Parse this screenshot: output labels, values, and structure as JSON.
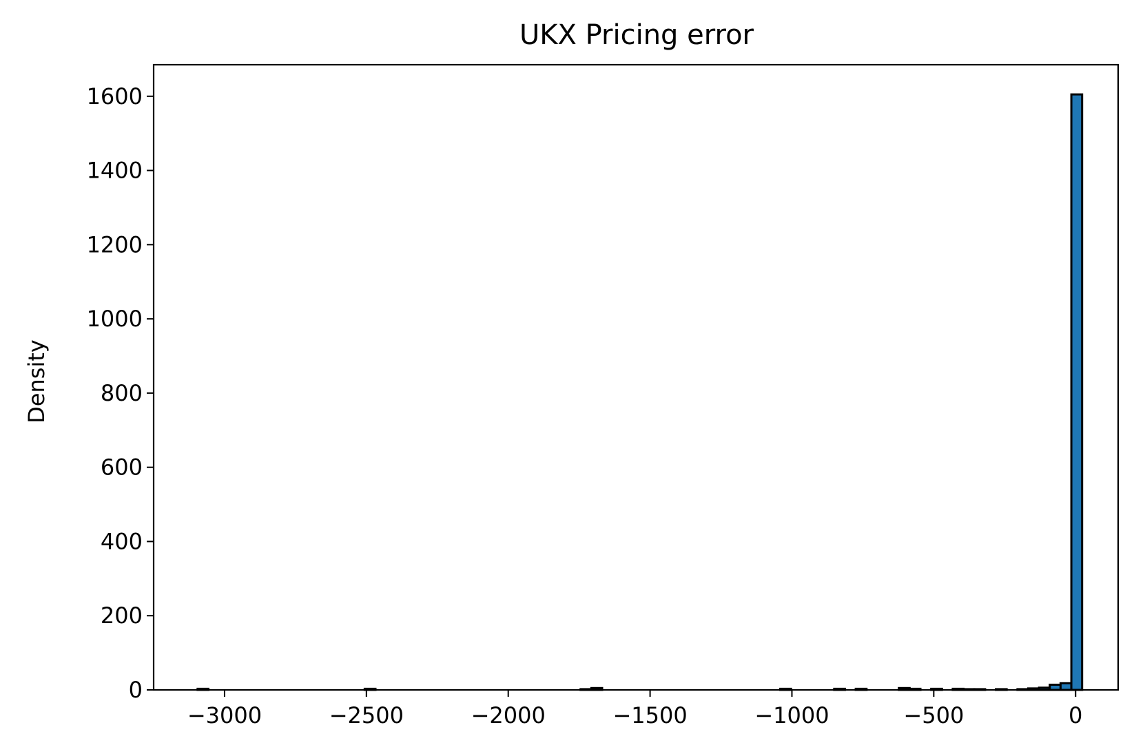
{
  "chart_data": {
    "type": "bar",
    "title": "UKX Pricing error",
    "xlabel": "",
    "ylabel": "Density",
    "xlim": [
      -3250,
      150
    ],
    "ylim": [
      0,
      1685
    ],
    "grid": false,
    "xticks": [
      -3000,
      -2500,
      -2000,
      -1500,
      -1000,
      -500,
      0
    ],
    "xtick_labels": [
      "−3000",
      "−2500",
      "−2000",
      "−1500",
      "−1000",
      "−500",
      "0"
    ],
    "yticks": [
      0,
      200,
      400,
      600,
      800,
      1000,
      1200,
      1400,
      1600
    ],
    "ytick_labels": [
      "0",
      "200",
      "400",
      "600",
      "800",
      "1000",
      "1200",
      "1400",
      "1600"
    ],
    "bar_color": "#1f77b4",
    "bin_width": 38,
    "bins": [
      {
        "x": -3076,
        "value": 3
      },
      {
        "x": -2487,
        "value": 3
      },
      {
        "x": -1726,
        "value": 2
      },
      {
        "x": -1688,
        "value": 5
      },
      {
        "x": -1022,
        "value": 3
      },
      {
        "x": -832,
        "value": 3
      },
      {
        "x": -756,
        "value": 3
      },
      {
        "x": -604,
        "value": 5
      },
      {
        "x": -566,
        "value": 3
      },
      {
        "x": -490,
        "value": 3
      },
      {
        "x": -414,
        "value": 3
      },
      {
        "x": -376,
        "value": 2
      },
      {
        "x": -338,
        "value": 2
      },
      {
        "x": -262,
        "value": 2
      },
      {
        "x": -186,
        "value": 2
      },
      {
        "x": -148,
        "value": 4
      },
      {
        "x": -110,
        "value": 6
      },
      {
        "x": -72,
        "value": 14
      },
      {
        "x": -34,
        "value": 18
      },
      {
        "x": 4,
        "value": 1605
      }
    ]
  }
}
